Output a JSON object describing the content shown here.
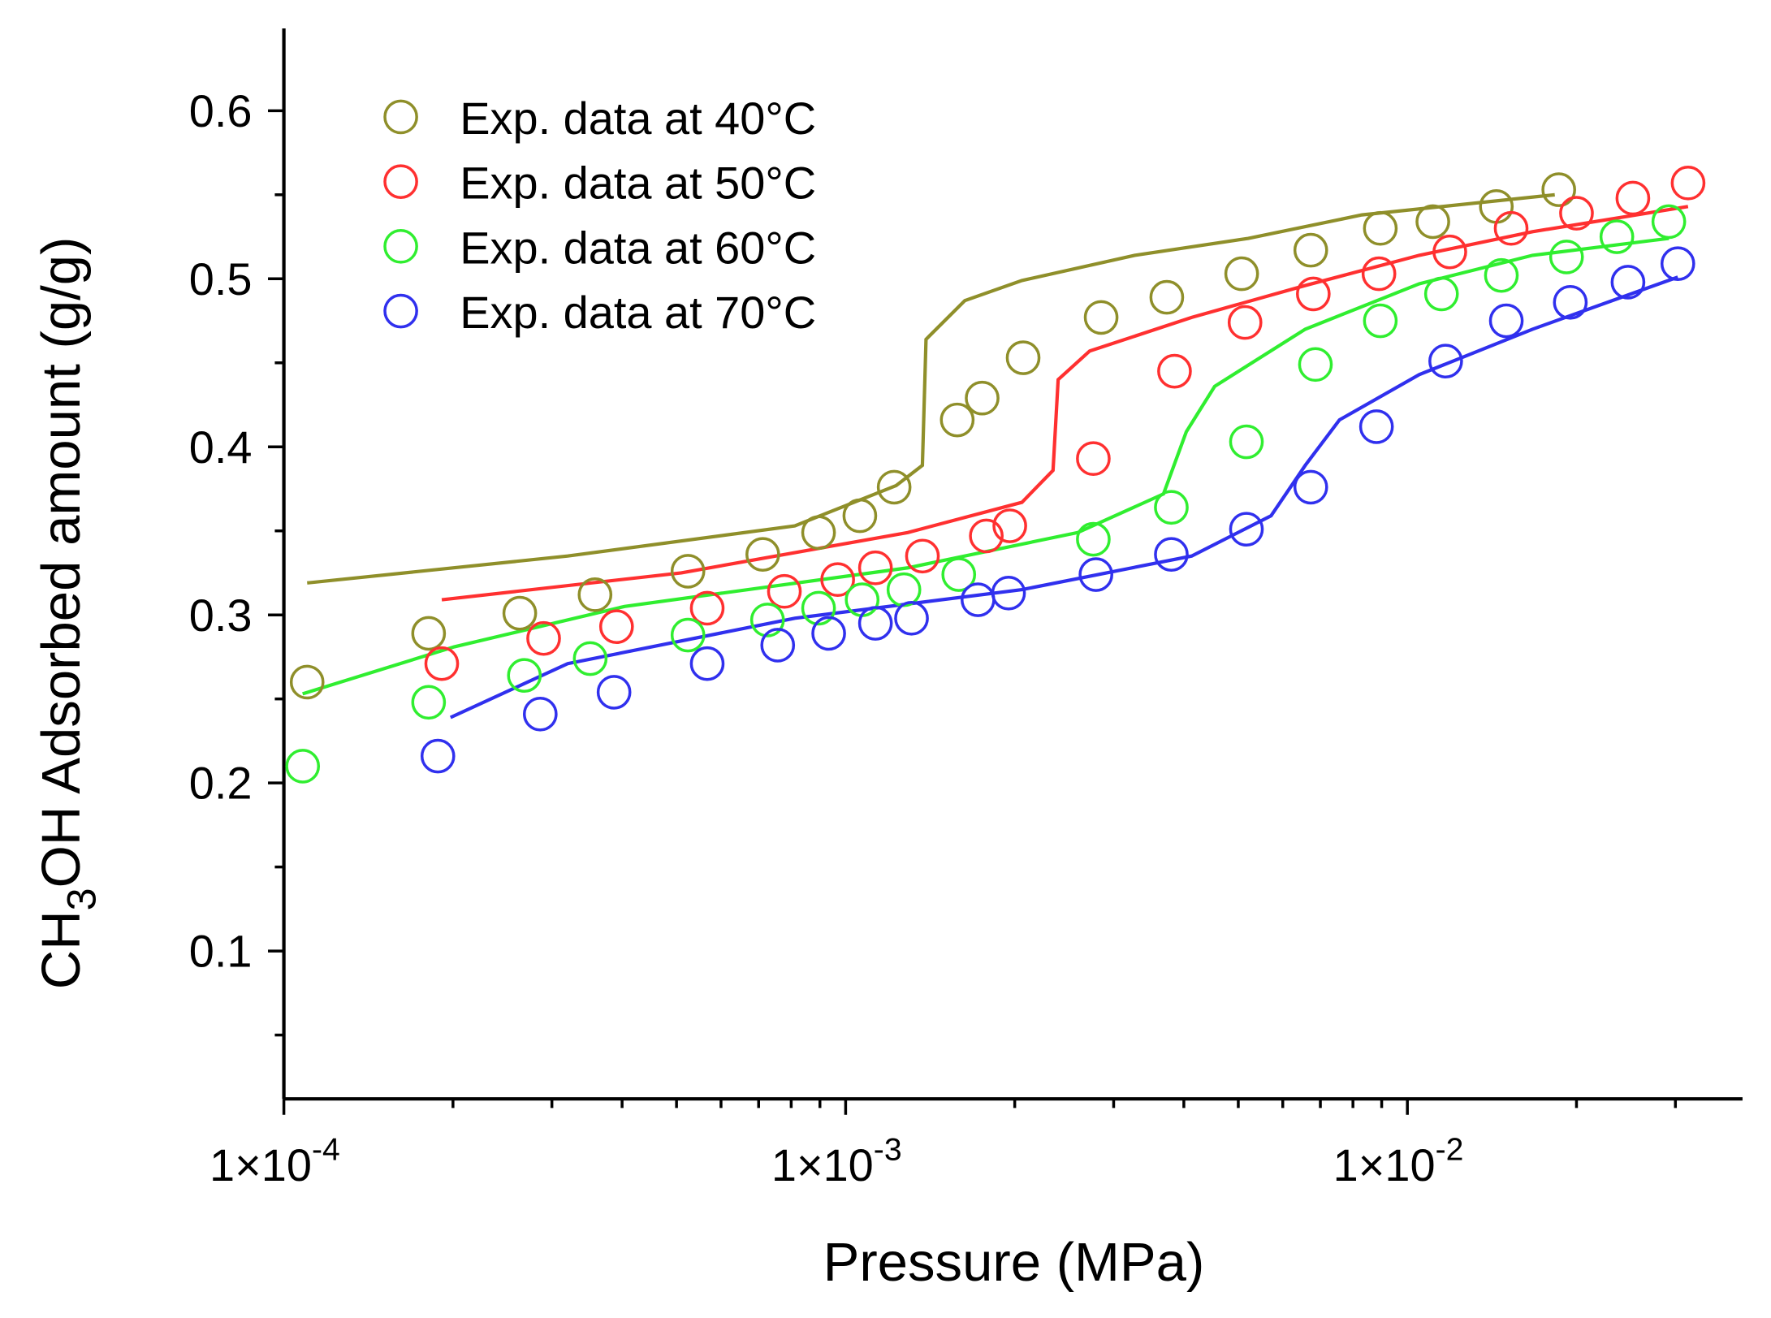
{
  "chart_data": {
    "type": "scatter",
    "xscale": "log",
    "xlabel": "Pressure (MPa)",
    "ylabel_parts": {
      "pre": "CH",
      "sub": "3",
      "post": "OH Adsorbed amount (g/g)"
    },
    "xlim": [
      0.0001,
      0.0395
    ],
    "ylim": [
      0.012,
      0.649
    ],
    "xticks": [
      {
        "value": 0.0001,
        "base": "1×10",
        "exp": "-4"
      },
      {
        "value": 0.001,
        "base": "1×10",
        "exp": "-3"
      },
      {
        "value": 0.01,
        "base": "1×10",
        "exp": "-2"
      }
    ],
    "yticks": [
      {
        "value": 0.1,
        "label": "0.1"
      },
      {
        "value": 0.2,
        "label": "0.2"
      },
      {
        "value": 0.3,
        "label": "0.3"
      },
      {
        "value": 0.4,
        "label": "0.4"
      },
      {
        "value": 0.5,
        "label": "0.5"
      },
      {
        "value": 0.6,
        "label": "0.6"
      }
    ],
    "legend_position": "top-left",
    "series": [
      {
        "name": "Exp. data at 40°C",
        "color": "#8f8f2a",
        "x": [
          0.00011,
          0.000181,
          0.000263,
          0.000358,
          0.000524,
          0.000712,
          0.000895,
          0.00106,
          0.00122,
          0.00158,
          0.00175,
          0.00207,
          0.00285,
          0.00373,
          0.00507,
          0.00673,
          0.00895,
          0.0111,
          0.0144,
          0.0186
        ],
        "y": [
          0.26,
          0.289,
          0.301,
          0.312,
          0.326,
          0.336,
          0.349,
          0.359,
          0.376,
          0.416,
          0.429,
          0.453,
          0.477,
          0.489,
          0.503,
          0.517,
          0.53,
          0.534,
          0.543,
          0.553
        ],
        "fit_x": [
          0.00011,
          0.00032,
          0.000812,
          0.00123,
          0.00137,
          0.00139,
          0.00163,
          0.00206,
          0.00327,
          0.00521,
          0.0083,
          0.0183
        ],
        "fit_y": [
          0.319,
          0.335,
          0.353,
          0.377,
          0.389,
          0.464,
          0.487,
          0.499,
          0.514,
          0.524,
          0.538,
          0.55
        ]
      },
      {
        "name": "Exp. data at 50°C",
        "color": "#ff3030",
        "x": [
          0.000191,
          0.00029,
          0.000391,
          0.000567,
          0.000778,
          0.000968,
          0.00113,
          0.00137,
          0.00178,
          0.00196,
          0.00276,
          0.00385,
          0.00514,
          0.0068,
          0.0089,
          0.0119,
          0.0153,
          0.02,
          0.0252,
          0.0316
        ],
        "y": [
          0.271,
          0.286,
          0.293,
          0.304,
          0.314,
          0.321,
          0.328,
          0.335,
          0.347,
          0.353,
          0.393,
          0.445,
          0.474,
          0.491,
          0.503,
          0.516,
          0.53,
          0.539,
          0.548,
          0.557
        ],
        "fit_x": [
          0.000191,
          0.00051,
          0.00129,
          0.00206,
          0.00234,
          0.00239,
          0.00272,
          0.00413,
          0.00658,
          0.0105,
          0.0167,
          0.0316
        ],
        "fit_y": [
          0.309,
          0.325,
          0.349,
          0.367,
          0.386,
          0.44,
          0.457,
          0.477,
          0.496,
          0.514,
          0.528,
          0.543
        ]
      },
      {
        "name": "Exp. data at 60°C",
        "color": "#30ee30",
        "x": [
          0.000108,
          0.000181,
          0.000268,
          0.000351,
          0.000524,
          0.000726,
          0.000895,
          0.00107,
          0.00127,
          0.00159,
          0.00276,
          0.0038,
          0.00517,
          0.00686,
          0.00895,
          0.0115,
          0.0147,
          0.0192,
          0.0236,
          0.0292
        ],
        "y": [
          0.21,
          0.248,
          0.264,
          0.274,
          0.288,
          0.297,
          0.304,
          0.309,
          0.315,
          0.324,
          0.345,
          0.364,
          0.403,
          0.449,
          0.475,
          0.491,
          0.502,
          0.513,
          0.525,
          0.534
        ],
        "fit_x": [
          0.000108,
          0.000201,
          0.000404,
          0.00129,
          0.00259,
          0.00368,
          0.00404,
          0.00454,
          0.00658,
          0.0105,
          0.0167,
          0.0292
        ],
        "fit_y": [
          0.253,
          0.281,
          0.305,
          0.328,
          0.349,
          0.372,
          0.409,
          0.436,
          0.47,
          0.497,
          0.514,
          0.524
        ]
      },
      {
        "name": "Exp. data at 70°C",
        "color": "#3030ee",
        "x": [
          0.000188,
          0.000286,
          0.000387,
          0.000567,
          0.000757,
          0.000933,
          0.00113,
          0.00131,
          0.00172,
          0.00195,
          0.00279,
          0.0038,
          0.00517,
          0.00673,
          0.00881,
          0.0117,
          0.015,
          0.0195,
          0.0247,
          0.0303
        ],
        "y": [
          0.216,
          0.241,
          0.254,
          0.271,
          0.282,
          0.289,
          0.295,
          0.298,
          0.309,
          0.313,
          0.324,
          0.336,
          0.351,
          0.376,
          0.412,
          0.451,
          0.475,
          0.486,
          0.498,
          0.509
        ],
        "fit_x": [
          0.000198,
          0.00032,
          0.000812,
          0.00206,
          0.00413,
          0.00572,
          0.00658,
          0.00757,
          0.0105,
          0.0167,
          0.0303
        ],
        "fit_y": [
          0.239,
          0.271,
          0.298,
          0.315,
          0.335,
          0.359,
          0.389,
          0.416,
          0.443,
          0.47,
          0.501
        ]
      }
    ]
  }
}
